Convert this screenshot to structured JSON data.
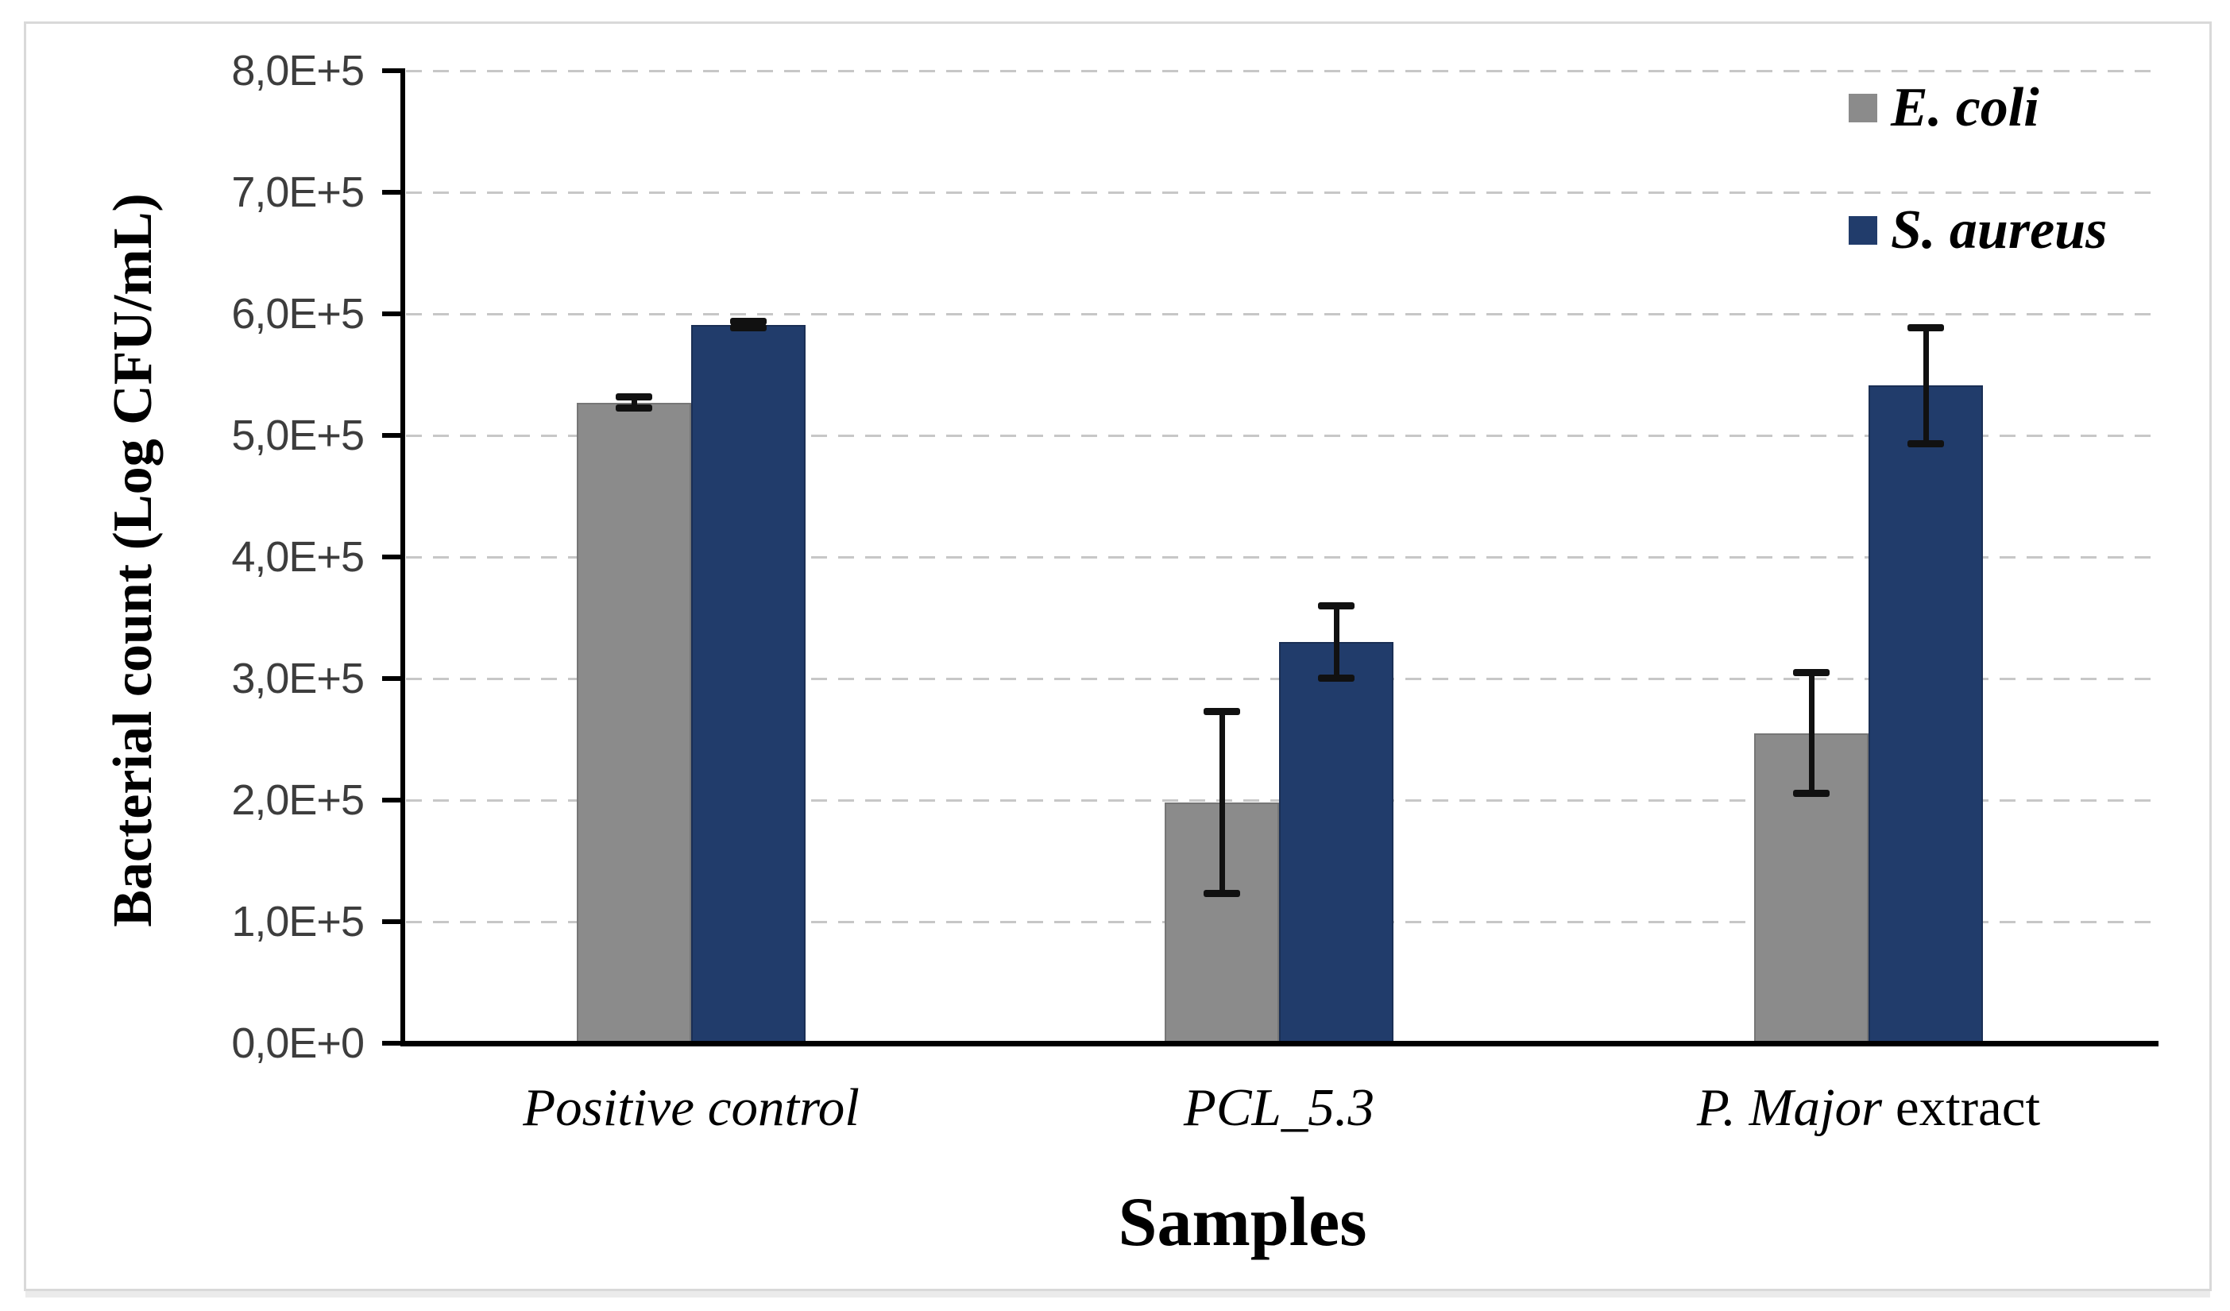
{
  "figure": {
    "y_axis_title": "Bacterial count (Log CFU/mL)",
    "x_axis_title": "Samples"
  },
  "legend": {
    "position": "top-right",
    "items": [
      {
        "label": "E. coli",
        "color": "#8b8b8b"
      },
      {
        "label": "S. aureus",
        "color": "#213c6b"
      }
    ]
  },
  "chart_data": {
    "type": "bar",
    "title": "",
    "xlabel": "Samples",
    "ylabel": "Bacterial count (Log CFU/mL)",
    "categories": [
      "Positive control",
      "PCL_5.3",
      "P. Major extract"
    ],
    "category_label_parts": [
      [
        {
          "text": "Positive control",
          "italic": true
        }
      ],
      [
        {
          "text": "PCL_5.3",
          "italic": true
        }
      ],
      [
        {
          "text": "P. Major",
          "italic": true
        },
        {
          "text": " extract",
          "italic": false
        }
      ]
    ],
    "series": [
      {
        "name": "E. coli",
        "color": "#8b8b8b",
        "border_color": "#767676",
        "values": [
          527000,
          198000,
          255000
        ],
        "errors": [
          5000,
          75000,
          50000
        ]
      },
      {
        "name": "S. aureus",
        "color": "#213c6b",
        "border_color": "#1a2f55",
        "values": [
          591000,
          330000,
          541000
        ],
        "errors": [
          3000,
          30000,
          48000
        ]
      }
    ],
    "ylim": [
      0,
      800000
    ],
    "y_tick_step": 100000,
    "y_tick_labels": [
      "0,0E+0",
      "1,0E+5",
      "2,0E+5",
      "3,0E+5",
      "4,0E+5",
      "5,0E+5",
      "6,0E+5",
      "7,0E+5",
      "8,0E+5"
    ],
    "grid": "dashed-horizontal",
    "legend_position": "top-right"
  }
}
